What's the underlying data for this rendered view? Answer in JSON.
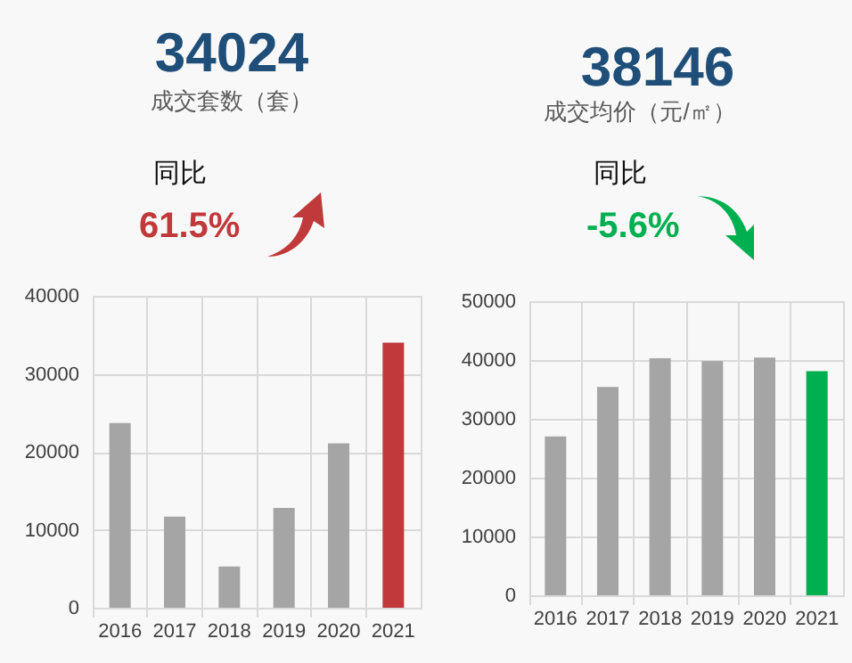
{
  "chart_data": [
    {
      "type": "bar",
      "title": "34024",
      "subtitle": "成交套数（套）",
      "annotations": [
        "同比",
        "61.5%"
      ],
      "categories": [
        "2016",
        "2017",
        "2018",
        "2019",
        "2020",
        "2021"
      ],
      "values": [
        23700,
        11700,
        5300,
        12800,
        21100,
        34000
      ],
      "colors": [
        "#a5a5a5",
        "#a5a5a5",
        "#a5a5a5",
        "#a5a5a5",
        "#a5a5a5",
        "#c0393b"
      ],
      "ylim": [
        0,
        40000
      ],
      "yticks": [
        0,
        10000,
        20000,
        30000,
        40000
      ],
      "grid": true
    },
    {
      "type": "bar",
      "title": "38146",
      "subtitle": "成交均价（元/㎡）",
      "annotations": [
        "同比",
        "-5.6%"
      ],
      "categories": [
        "2016",
        "2017",
        "2018",
        "2019",
        "2020",
        "2021"
      ],
      "values": [
        27000,
        35400,
        40300,
        39800,
        40400,
        38100
      ],
      "colors": [
        "#a5a5a5",
        "#a5a5a5",
        "#a5a5a5",
        "#a5a5a5",
        "#a5a5a5",
        "#00b050"
      ],
      "ylim": [
        0,
        50000
      ],
      "yticks": [
        0,
        10000,
        20000,
        30000,
        40000,
        50000
      ],
      "grid": true
    }
  ]
}
